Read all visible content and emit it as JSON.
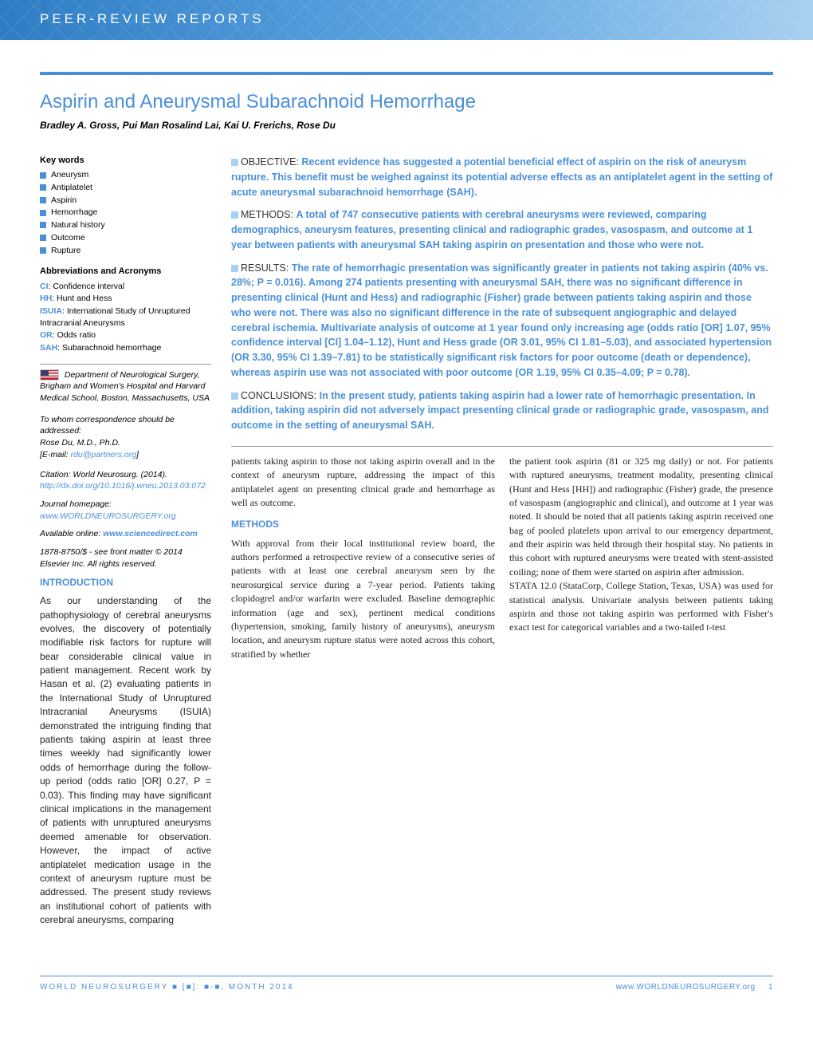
{
  "header": {
    "category": "Peer-Review Reports"
  },
  "title": "Aspirin and Aneurysmal Subarachnoid Hemorrhage",
  "authors": "Bradley A. Gross, Pui Man Rosalind Lai, Kai U. Frerichs, Rose Du",
  "keywords": {
    "heading": "Key words",
    "items": [
      "Aneurysm",
      "Antiplatelet",
      "Aspirin",
      "Hemorrhage",
      "Natural history",
      "Outcome",
      "Rupture"
    ]
  },
  "abbreviations": {
    "heading": "Abbreviations and Acronyms",
    "items": [
      {
        "key": "CI",
        "val": ": Confidence interval"
      },
      {
        "key": "HH",
        "val": ": Hunt and Hess"
      },
      {
        "key": "ISUIA",
        "val": ": International Study of Unruptured Intracranial Aneurysms"
      },
      {
        "key": "OR",
        "val": ": Odds ratio"
      },
      {
        "key": "SAH",
        "val": ": Subarachnoid hemorrhage"
      }
    ]
  },
  "affiliation": "Department of Neurological Surgery, Brigham and Women's Hospital and Harvard Medical School, Boston, Massachusetts, USA",
  "correspondence": {
    "label": "To whom correspondence should be addressed:",
    "name": "Rose Du, M.D., Ph.D.",
    "email_label": "[E-mail: ",
    "email": "rdu@partners.org",
    "email_close": "]"
  },
  "citation": {
    "label": "Citation: World Neurosurg. (2014).",
    "doi": "http://dx.doi.org/10.1016/j.wneu.2013.03.072"
  },
  "journal_home": {
    "label": "Journal homepage: ",
    "url": "www.WORLDNEUROSURGERY.org"
  },
  "online": {
    "label": "Available online: ",
    "url": "www.sciencedirect.com"
  },
  "copyright": "1878-8750/$ - see front matter © 2014 Elsevier Inc. All rights reserved.",
  "abstract": {
    "objective": {
      "label": "OBJECTIVE:",
      "text": "Recent evidence has suggested a potential beneficial effect of aspirin on the risk of aneurysm rupture. This benefit must be weighed against its potential adverse effects as an antiplatelet agent in the setting of acute aneurysmal subarachnoid hemorrhage (SAH)."
    },
    "methods": {
      "label": "METHODS:",
      "text": "A total of 747 consecutive patients with cerebral aneurysms were reviewed, comparing demographics, aneurysm features, presenting clinical and radiographic grades, vasospasm, and outcome at 1 year between patients with aneurysmal SAH taking aspirin on presentation and those who were not."
    },
    "results": {
      "label": "RESULTS:",
      "text": "The rate of hemorrhagic presentation was significantly greater in patients not taking aspirin (40% vs. 28%; P = 0.016). Among 274 patients presenting with aneurysmal SAH, there was no significant difference in presenting clinical (Hunt and Hess) and radiographic (Fisher) grade between patients taking aspirin and those who were not. There was also no significant difference in the rate of subsequent angiographic and delayed cerebral ischemia. Multivariate analysis of outcome at 1 year found only increasing age (odds ratio [OR] 1.07, 95% confidence interval [CI] 1.04–1.12), Hunt and Hess grade (OR 3.01, 95% CI 1.81–5.03), and associated hypertension (OR 3.30, 95% CI 1.39–7.81) to be statistically significant risk factors for poor outcome (death or dependence), whereas aspirin use was not associated with poor outcome (OR 1.19, 95% CI 0.35–4.09; P = 0.78)."
    },
    "conclusions": {
      "label": "CONCLUSIONS:",
      "text": "In the present study, patients taking aspirin had a lower rate of hemorrhagic presentation. In addition, taking aspirin did not adversely impact presenting clinical grade or radiographic grade, vasospasm, and outcome in the setting of aneurysmal SAH."
    }
  },
  "introduction": {
    "heading": "INTRODUCTION",
    "p1": "As our understanding of the pathophysiology of cerebral aneurysms evolves, the discovery of potentially modifiable risk factors for rupture will bear considerable clinical value in patient management. Recent work by Hasan et al. (2) evaluating patients in the International Study of Unruptured Intracranial Aneurysms (ISUIA) demonstrated the intriguing finding that patients taking aspirin at least three times weekly had significantly lower odds of hemorrhage during the follow-up period (odds ratio [OR] 0.27, P = 0.03). This finding may have significant clinical implications in the management of patients with unruptured aneurysms deemed amenable for observation. However, the impact of active antiplatelet medication usage in the context of aneurysm rupture must be addressed. The present study reviews an institutional cohort of patients with cerebral aneurysms, comparing",
    "p2": "patients taking aspirin to those not taking aspirin overall and in the context of aneurysm rupture, addressing the impact of this antiplatelet agent on presenting clinical grade and hemorrhage as well as outcome."
  },
  "methods": {
    "heading": "METHODS",
    "p1": "With approval from their local institutional review board, the authors performed a retrospective review of a consecutive series of patients with at least one cerebral aneurysm seen by the neurosurgical service during a 7-year period. Patients taking clopidogrel and/or warfarin were excluded. Baseline demographic information (age and sex), pertinent medical conditions (hypertension, smoking, family history of aneurysms), aneurysm location, and aneurysm rupture status were noted across this cohort, stratified by whether",
    "p2": "the patient took aspirin (81 or 325 mg daily) or not. For patients with ruptured aneurysms, treatment modality, presenting clinical (Hunt and Hess [HH]) and radiographic (Fisher) grade, the presence of vasospasm (angiographic and clinical), and outcome at 1 year was noted. It should be noted that all patients taking aspirin received one bag of pooled platelets upon arrival to our emergency department, and their aspirin was held through their hospital stay. No patients in this cohort with ruptured aneurysms were treated with stent-assisted coiling; none of them were started on aspirin after admission.",
    "p3": "STATA 12.0 (StataCorp, College Station, Texas, USA) was used for statistical analysis. Univariate analysis between patients taking aspirin and those not taking aspirin was performed with Fisher's exact test for categorical variables and a two-tailed t-test"
  },
  "footer": {
    "left": "WORLD NEUROSURGERY ■ [■]: ■-■, MONTH 2014",
    "right_url": "www.WORLDNEUROSURGERY.org",
    "page": "1"
  },
  "colors": {
    "accent": "#4a90d9",
    "light_accent": "#a8d0f0",
    "text": "#222222"
  }
}
